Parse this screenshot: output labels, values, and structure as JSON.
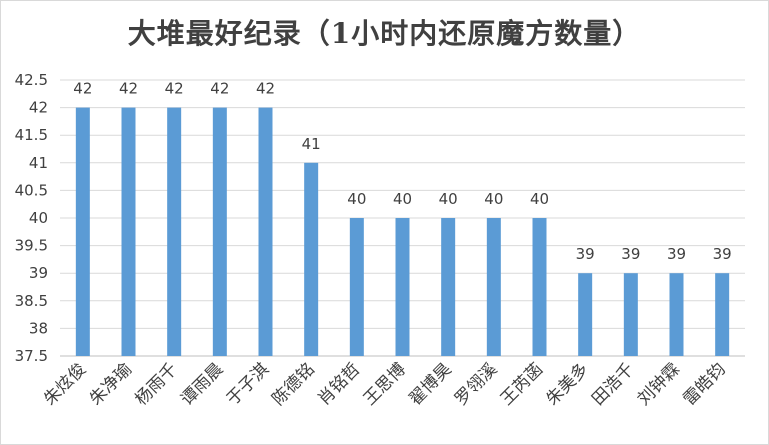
{
  "chart_data": {
    "type": "bar",
    "title": "大堆最好纪录（1小时内还原魔方数量）",
    "categories": [
      "朱炫俊",
      "朱净瑜",
      "杨雨千",
      "谭雨晨",
      "于子淇",
      "陈德铭",
      "肖铭哲",
      "王思博",
      "翟博昊",
      "罗翎溪",
      "王芮菡",
      "朱美多",
      "田浩千",
      "刘钟霖",
      "雷皓钧"
    ],
    "values": [
      42,
      42,
      42,
      42,
      42,
      41,
      40,
      40,
      40,
      40,
      40,
      39,
      39,
      39,
      39
    ],
    "ylim": [
      37.5,
      42.5
    ],
    "yticks": [
      "37.5",
      "38",
      "38.5",
      "39",
      "39.5",
      "40",
      "40.5",
      "41",
      "41.5",
      "42",
      "42.5"
    ],
    "grid": true,
    "bar_color": "#5b9bd5",
    "data_labels": true
  }
}
